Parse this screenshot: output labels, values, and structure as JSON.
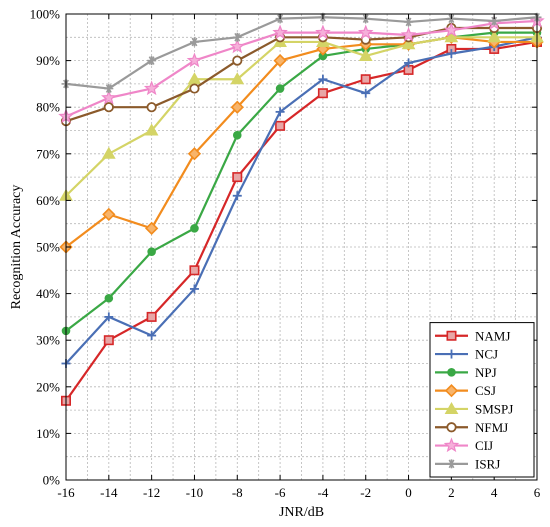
{
  "chart_data": {
    "type": "line",
    "xlabel": "JNR/dB",
    "ylabel": "Recognition Accuracy",
    "x": [
      -16,
      -14,
      -12,
      -10,
      -8,
      -6,
      -4,
      -2,
      0,
      2,
      4,
      6
    ],
    "xticks": [
      "-16",
      "-14",
      "-12",
      "-10",
      "-8",
      "-6",
      "-4",
      "-2",
      "0",
      "2",
      "4",
      "6"
    ],
    "xlim": [
      -16,
      6
    ],
    "ylim": [
      0,
      100
    ],
    "yticks": [
      "0%",
      "10%",
      "20%",
      "30%",
      "40%",
      "50%",
      "60%",
      "70%",
      "80%",
      "90%",
      "100%"
    ],
    "grid": true,
    "legend_position": "bottom-right",
    "series": [
      {
        "name": "NAMJ",
        "color": "#d62728",
        "marker": "square",
        "values": [
          17,
          30,
          35,
          45,
          65,
          76,
          83,
          86,
          88,
          92.5,
          92.5,
          94
        ]
      },
      {
        "name": "NCJ",
        "color": "#4a6fb5",
        "marker": "plus",
        "values": [
          25,
          35,
          31,
          41,
          61,
          79,
          86,
          83,
          89.5,
          91.5,
          93,
          95
        ]
      },
      {
        "name": "NPJ",
        "color": "#3aa845",
        "marker": "circle",
        "values": [
          32,
          39,
          49,
          54,
          74,
          84,
          91,
          92.5,
          93.5,
          95,
          96,
          96
        ]
      },
      {
        "name": "CSJ",
        "color": "#f28c1e",
        "marker": "diamond",
        "values": [
          50,
          57,
          54,
          70,
          80,
          90,
          92.5,
          93.5,
          93.5,
          95,
          94,
          94
        ]
      },
      {
        "name": "SMSPJ",
        "color": "#d4d466",
        "marker": "triangle",
        "values": [
          61,
          70,
          75,
          86,
          86,
          94,
          94,
          91,
          93.5,
          95,
          95,
          95
        ]
      },
      {
        "name": "NFMJ",
        "color": "#8b5a2b",
        "marker": "circle-open",
        "values": [
          77,
          80,
          80,
          84,
          90,
          95,
          95,
          94.5,
          95,
          97,
          97,
          97
        ]
      },
      {
        "name": "CIJ",
        "color": "#ef86c8",
        "marker": "star",
        "values": [
          78,
          82,
          84,
          90,
          93,
          96,
          96,
          96,
          95.5,
          96.5,
          98,
          98.5
        ]
      },
      {
        "name": "ISRJ",
        "color": "#9a9a9a",
        "marker": "asterisk",
        "values": [
          85,
          84,
          90,
          94,
          95,
          99,
          99.3,
          99,
          98.3,
          99,
          98.5,
          99.3
        ]
      }
    ]
  }
}
